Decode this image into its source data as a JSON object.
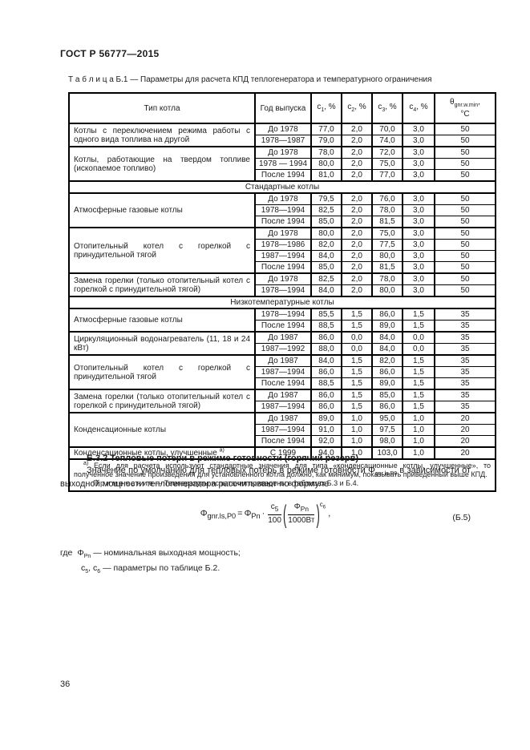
{
  "page": {
    "doc_code": "ГОСТ Р 56777—2015",
    "page_number": "36"
  },
  "table_caption": "Т а б л и ц а  Б.1 — Параметры для расчета КПД теплогенератора и температурного ограничения",
  "table": {
    "columns": [
      {
        "label": "Тип котла"
      },
      {
        "label": "Год выпуска"
      },
      {
        "base": "c",
        "sub": "1",
        "suffix": ", %"
      },
      {
        "base": "c",
        "sub": "2",
        "suffix": ", %"
      },
      {
        "base": "c",
        "sub": "3",
        "suffix": ", %"
      },
      {
        "base": "c",
        "sub": "4",
        "suffix": ", %"
      },
      {
        "base": "θ",
        "sub": "gnr.w.min",
        "suffix": ",",
        "unit": "°C"
      }
    ],
    "sections": [
      {
        "header": "",
        "groups": [
          {
            "type": "Котлы с переключением режима работы с одного вида топлива на другой",
            "rows": [
              {
                "year": "До 1978",
                "c1": "77,0",
                "c2": "2,0",
                "c3": "70,0",
                "c4": "3,0",
                "t": "50"
              },
              {
                "year": "1978—1987",
                "c1": "79,0",
                "c2": "2,0",
                "c3": "74,0",
                "c4": "3,0",
                "t": "50"
              }
            ]
          },
          {
            "type": "Котлы, работающие на твердом топливе (ископаемое топливо)",
            "rows": [
              {
                "year": "До 1978",
                "c1": "78,0",
                "c2": "2,0",
                "c3": "72,0",
                "c4": "3,0",
                "t": "50"
              },
              {
                "year": "1978 — 1994",
                "c1": "80,0",
                "c2": "2,0",
                "c3": "75,0",
                "c4": "3,0",
                "t": "50"
              },
              {
                "year": "После 1994",
                "c1": "81,0",
                "c2": "2,0",
                "c3": "77,0",
                "c4": "3,0",
                "t": "50"
              }
            ]
          }
        ]
      },
      {
        "header": "Стандартные котлы",
        "groups": [
          {
            "type": "Атмосферные газовые котлы",
            "rows": [
              {
                "year": "До 1978",
                "c1": "79,5",
                "c2": "2,0",
                "c3": "76,0",
                "c4": "3,0",
                "t": "50"
              },
              {
                "year": "1978—1994",
                "c1": "82,5",
                "c2": "2,0",
                "c3": "78,0",
                "c4": "3,0",
                "t": "50"
              },
              {
                "year": "После 1994",
                "c1": "85,0",
                "c2": "2,0",
                "c3": "81,5",
                "c4": "3,0",
                "t": "50"
              }
            ]
          },
          {
            "type": "Отопительный котел с горелкой с принудительной тягой",
            "rows": [
              {
                "year": "До 1978",
                "c1": "80,0",
                "c2": "2,0",
                "c3": "75,0",
                "c4": "3,0",
                "t": "50"
              },
              {
                "year": "1978—1986",
                "c1": "82,0",
                "c2": "2,0",
                "c3": "77,5",
                "c4": "3,0",
                "t": "50"
              },
              {
                "year": "1987—1994",
                "c1": "84,0",
                "c2": "2,0",
                "c3": "80,0",
                "c4": "3,0",
                "t": "50"
              },
              {
                "year": "После 1994",
                "c1": "85,0",
                "c2": "2,0",
                "c3": "81,5",
                "c4": "3,0",
                "t": "50"
              }
            ]
          },
          {
            "type": "Замена горелки (только отопительный котел с горелкой с принудительной тягой)",
            "rows": [
              {
                "year": "До 1978",
                "c1": "82,5",
                "c2": "2,0",
                "c3": "78,0",
                "c4": "3,0",
                "t": "50"
              },
              {
                "year": "1978—1994",
                "c1": "84,0",
                "c2": "2,0",
                "c3": "80,0",
                "c4": "3,0",
                "t": "50"
              }
            ]
          }
        ]
      },
      {
        "header": "Низкотемпературные котлы",
        "groups": [
          {
            "type": "Атмосферные газовые котлы",
            "rows": [
              {
                "year": "1978—1994",
                "c1": "85,5",
                "c2": "1,5",
                "c3": "86,0",
                "c4": "1,5",
                "t": "35"
              },
              {
                "year": "После 1994",
                "c1": "88,5",
                "c2": "1,5",
                "c3": "89,0",
                "c4": "1,5",
                "t": "35"
              }
            ]
          },
          {
            "type": "Циркуляционный водонагреватель (11, 18 и 24 кВт)",
            "rows": [
              {
                "year": "До 1987",
                "c1": "86,0",
                "c2": "0,0",
                "c3": "84,0",
                "c4": "0,0",
                "t": "35"
              },
              {
                "year": "1987—1992",
                "c1": "88,0",
                "c2": "0,0",
                "c3": "84,0",
                "c4": "0,0",
                "t": "35"
              }
            ]
          },
          {
            "type": "Отопительный котел с горелкой с принудительной тягой",
            "rows": [
              {
                "year": "До 1987",
                "c1": "84,0",
                "c2": "1,5",
                "c3": "82,0",
                "c4": "1,5",
                "t": "35"
              },
              {
                "year": "1987—1994",
                "c1": "86,0",
                "c2": "1,5",
                "c3": "86,0",
                "c4": "1,5",
                "t": "35"
              },
              {
                "year": "После 1994",
                "c1": "88,5",
                "c2": "1,5",
                "c3": "89,0",
                "c4": "1,5",
                "t": "35"
              }
            ]
          },
          {
            "type": "Замена горелки (только отопительный котел с горелкой с принудительной тягой)",
            "rows": [
              {
                "year": "До 1987",
                "c1": "86,0",
                "c2": "1,5",
                "c3": "85,0",
                "c4": "1,5",
                "t": "35"
              },
              {
                "year": "1987—1994",
                "c1": "86,0",
                "c2": "1,5",
                "c3": "86,0",
                "c4": "1,5",
                "t": "35"
              }
            ]
          },
          {
            "type": "Конденсационные котлы",
            "rows": [
              {
                "year": "До 1987",
                "c1": "89,0",
                "c2": "1,0",
                "c3": "95,0",
                "c4": "1,0",
                "t": "20"
              },
              {
                "year": "1987—1994",
                "c1": "91,0",
                "c2": "1,0",
                "c3": "97,5",
                "c4": "1,0",
                "t": "20"
              },
              {
                "year": "После 1994",
                "c1": "92,0",
                "c2": "1,0",
                "c3": "98,0",
                "c4": "1,0",
                "t": "20"
              }
            ]
          },
          {
            "type": "Конденсационные котлы, улучшенные",
            "mark": "а)",
            "rows": [
              {
                "year": "С 1999",
                "c1": "94,0",
                "c2": "1,0",
                "c3": "103,0",
                "c4": "1,0",
                "t": "20"
              }
            ]
          }
        ]
      }
    ],
    "footnote": {
      "mark": "а)",
      "text": "Если для расчета используют стандартные значения для типа «конденсационные котлы, улучшенные», то полученное значение произведения для установленного котла должно, как минимум, показывать приведенный выше КПД."
    },
    "note": {
      "label": "П р и м е ч а н и е",
      "text": "— Температуры испытания приведены в таблицах Б.3 и Б.4."
    }
  },
  "section": {
    "heading": "Б.3.2  Тепловые потери в режиме готовности (горячий резерв)",
    "paragraph": {
      "before": "Значение по умолчанию для тепловых потерь в режиме готовности",
      "symbol": {
        "base": "Φ",
        "sub": "gnr.ls.P0"
      },
      "after": "в зависимости от выходной мощности теплогенератора рассчитывают по формуле"
    },
    "formula": {
      "lhs": {
        "base": "Φ",
        "sub": "gnr.ls,P0"
      },
      "equals": "=",
      "rhs_lead": {
        "base": "Φ",
        "sub": "Pn"
      },
      "dot": "·",
      "frac1": {
        "num": {
          "base": "c",
          "sub": "5"
        },
        "den": "100"
      },
      "frac2": {
        "num": {
          "base": "Φ",
          "sub": "Pn"
        },
        "den": "1000Вт"
      },
      "exponent": {
        "base": "c",
        "sub": "6"
      },
      "trailing": ",",
      "number": "(Б.5)"
    },
    "where": {
      "lead": "где",
      "lines": [
        {
          "symbols": [
            {
              "base": "Φ",
              "sub": "Pn"
            }
          ],
          "dash": "—",
          "text": "номинальная выходная мощность;"
        },
        {
          "symbols": [
            {
              "base": "c",
              "sub": "5"
            },
            {
              "base": "c",
              "sub": "6"
            }
          ],
          "dash": "—",
          "text": "параметры по таблице Б.2."
        }
      ]
    }
  }
}
